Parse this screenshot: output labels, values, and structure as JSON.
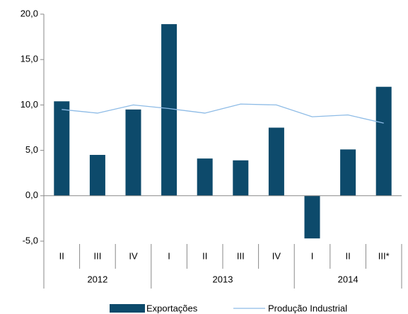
{
  "chart_data": {
    "type": "bar_line",
    "category_groups": [
      {
        "label": "2012",
        "categories": [
          "II",
          "III",
          "IV"
        ]
      },
      {
        "label": "2013",
        "categories": [
          "I",
          "II",
          "III",
          "IV"
        ]
      },
      {
        "label": "2014",
        "categories": [
          "I",
          "II",
          "III*"
        ]
      }
    ],
    "series": [
      {
        "name": "Exportações",
        "type": "bar",
        "color": "#0d4a6b",
        "values": [
          10.4,
          4.5,
          9.5,
          18.9,
          4.1,
          3.9,
          7.5,
          -4.7,
          5.1,
          12.0
        ]
      },
      {
        "name": "Produção Industrial",
        "type": "line",
        "color": "#8dbbe6",
        "values": [
          9.5,
          9.1,
          10.0,
          9.6,
          9.1,
          10.1,
          10.0,
          8.7,
          8.9,
          8.0
        ]
      }
    ],
    "ylim": [
      -5,
      20
    ],
    "yticks": [
      {
        "value": -5,
        "label": "-5,0"
      },
      {
        "value": 0,
        "label": "0,0"
      },
      {
        "value": 5,
        "label": "5,0"
      },
      {
        "value": 10,
        "label": "10,0"
      },
      {
        "value": 15,
        "label": "15,0"
      },
      {
        "value": 20,
        "label": "20,0"
      }
    ],
    "legend": "bottom"
  }
}
